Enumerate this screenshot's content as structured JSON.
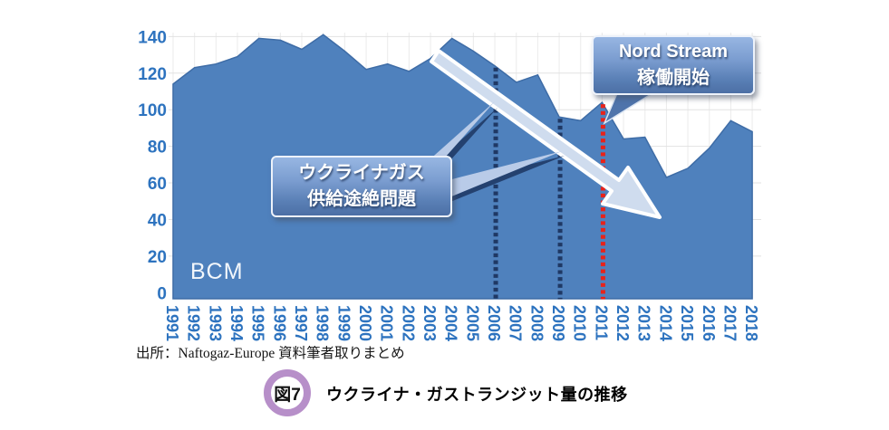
{
  "chart_data": {
    "type": "area",
    "title": "",
    "unit_label": "BCM",
    "x": [
      1991,
      1992,
      1993,
      1994,
      1995,
      1996,
      1997,
      1998,
      1999,
      2000,
      2001,
      2002,
      2003,
      2004,
      2005,
      2006,
      2007,
      2008,
      2009,
      2010,
      2011,
      2012,
      2013,
      2014,
      2015,
      2016,
      2017,
      2018
    ],
    "values": [
      114,
      123,
      125,
      129,
      139,
      138,
      133,
      141,
      132,
      122,
      125,
      121,
      128,
      139,
      132,
      124,
      115,
      119,
      96,
      94,
      104,
      84,
      85,
      63,
      68,
      79,
      94,
      88
    ],
    "ylim": [
      0,
      140
    ],
    "yticks": [
      0,
      20,
      40,
      60,
      80,
      100,
      120,
      140
    ],
    "series_color": "#4f81bd",
    "axis_label_color": "#2d73bf",
    "grid": true,
    "legend": "none",
    "event_lines": [
      {
        "year": 2006,
        "color": "#1f3864",
        "style": "dotted"
      },
      {
        "year": 2009,
        "color": "#1f3864",
        "style": "dotted"
      },
      {
        "year": 2011,
        "color": "#e8231a",
        "style": "dotted"
      }
    ],
    "trend_arrow": {
      "direction": "down-right",
      "color": "#cfdcee"
    }
  },
  "annotations": {
    "supply_callout": {
      "line1": "ウクライナガス",
      "line2": "供給途絶問題"
    },
    "nordstream_callout": {
      "line1": "Nord Stream",
      "line2": "稼働開始"
    }
  },
  "source": "出所：Naftogaz-Europe 資料筆者取りまとめ",
  "caption": {
    "fig_label": "図7",
    "title": "ウクライナ・ガストランジット量の推移"
  }
}
